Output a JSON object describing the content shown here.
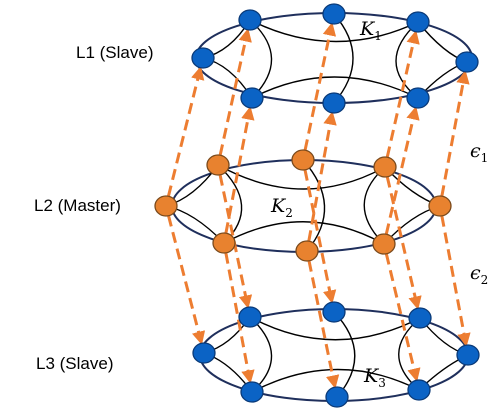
{
  "colors": {
    "ring_stroke": "#1f2f5c",
    "blue_node": "#0b63c5",
    "blue_node_stroke": "#0a3a78",
    "orange_node": "#e8822f",
    "orange_node_stroke": "#7a4a1c",
    "arrow": "#ed7d31",
    "edge": "#000000"
  },
  "layers": [
    {
      "label": "L1 (Slave)",
      "coupling": "K",
      "coupling_index": "1",
      "node_color": "blue"
    },
    {
      "label": "L2 (Master)",
      "coupling": "K",
      "coupling_index": "2",
      "node_color": "orange"
    },
    {
      "label": "L3 (Slave)",
      "coupling": "K",
      "coupling_index": "3",
      "node_color": "blue"
    }
  ],
  "inter_layer": [
    {
      "symbol": "ϵ",
      "index": "1"
    },
    {
      "symbol": "ϵ",
      "index": "2"
    }
  ],
  "arrow_style": "dashed orange, directed from L2 nodes to L1 and L3 nodes"
}
